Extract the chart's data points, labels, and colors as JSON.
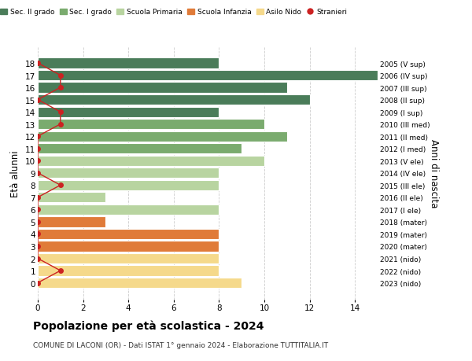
{
  "ages": [
    18,
    17,
    16,
    15,
    14,
    13,
    12,
    11,
    10,
    9,
    8,
    7,
    6,
    5,
    4,
    3,
    2,
    1,
    0
  ],
  "years": [
    "2005 (V sup)",
    "2006 (IV sup)",
    "2007 (III sup)",
    "2008 (II sup)",
    "2009 (I sup)",
    "2010 (III med)",
    "2011 (II med)",
    "2012 (I med)",
    "2013 (V ele)",
    "2014 (IV ele)",
    "2015 (III ele)",
    "2016 (II ele)",
    "2017 (I ele)",
    "2018 (mater)",
    "2019 (mater)",
    "2020 (mater)",
    "2021 (nido)",
    "2022 (nido)",
    "2023 (nido)"
  ],
  "bar_values": [
    8,
    15,
    11,
    12,
    8,
    10,
    11,
    9,
    10,
    8,
    8,
    3,
    8,
    3,
    8,
    8,
    8,
    8,
    9
  ],
  "bar_colors": [
    "#4a7c59",
    "#4a7c59",
    "#4a7c59",
    "#4a7c59",
    "#4a7c59",
    "#7aab6e",
    "#7aab6e",
    "#7aab6e",
    "#b8d4a0",
    "#b8d4a0",
    "#b8d4a0",
    "#b8d4a0",
    "#b8d4a0",
    "#e07b39",
    "#e07b39",
    "#e07b39",
    "#f5d98b",
    "#f5d98b",
    "#f5d98b"
  ],
  "stranieri_values": [
    0,
    1,
    1,
    0,
    1,
    1,
    0,
    0,
    0,
    0,
    1,
    0,
    0,
    0,
    0,
    0,
    0,
    1,
    0
  ],
  "stranieri_color": "#cc2222",
  "title": "Popolazione per età scolastica - 2024",
  "subtitle": "COMUNE DI LACONI (OR) - Dati ISTAT 1° gennaio 2024 - Elaborazione TUTTITALIA.IT",
  "ylabel_left": "Età alunni",
  "ylabel_right": "Anni di nascita",
  "xlim": [
    0,
    15
  ],
  "xticks": [
    0,
    2,
    4,
    6,
    8,
    10,
    12,
    14
  ],
  "legend_labels": [
    "Sec. II grado",
    "Sec. I grado",
    "Scuola Primaria",
    "Scuola Infanzia",
    "Asilo Nido",
    "Stranieri"
  ],
  "legend_colors": [
    "#4a7c59",
    "#7aab6e",
    "#b8d4a0",
    "#e07b39",
    "#f5d98b",
    "#cc2222"
  ],
  "legend_markers": [
    "s",
    "s",
    "s",
    "s",
    "s",
    "o"
  ],
  "bar_height": 0.85,
  "background_color": "#ffffff",
  "grid_color": "#cccccc"
}
